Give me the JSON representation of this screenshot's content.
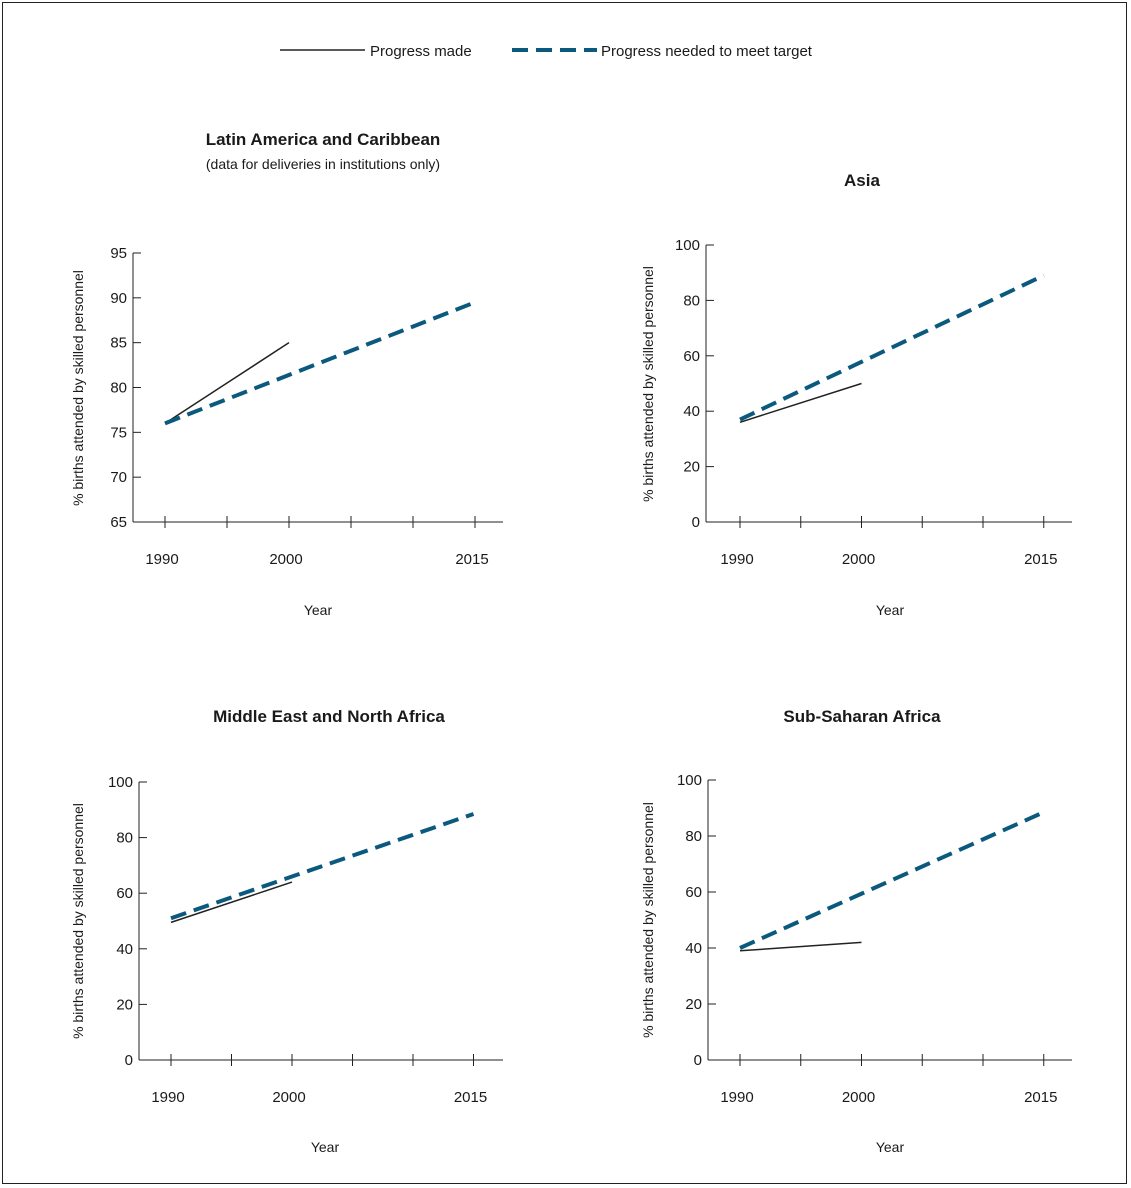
{
  "legend": {
    "made_label": "Progress made",
    "needed_label": "Progress needed to meet target"
  },
  "colors": {
    "made": "#222222",
    "needed": "#0b5a7e"
  },
  "chart_data": [
    {
      "type": "line",
      "title": "Latin America and Caribbean",
      "subtitle": "(data for deliveries in institutions only)",
      "xlabel": "Year",
      "ylabel": "% births attended by skilled personnel",
      "ylim": [
        65,
        95
      ],
      "yticks": [
        65,
        70,
        75,
        80,
        85,
        90,
        95
      ],
      "xticks": [
        "1990",
        "2000",
        "2015"
      ],
      "series": [
        {
          "name": "Progress made",
          "x": [
            1990,
            2000
          ],
          "y": [
            76,
            85
          ]
        },
        {
          "name": "Progress needed to meet target",
          "x": [
            1990,
            2015
          ],
          "y": [
            76,
            89.5
          ]
        }
      ]
    },
    {
      "type": "line",
      "title": "Asia",
      "subtitle": "",
      "xlabel": "Year",
      "ylabel": "% births attended by skilled personnel",
      "ylim": [
        0,
        100
      ],
      "yticks": [
        0,
        20,
        40,
        60,
        80,
        100
      ],
      "xticks": [
        "1990",
        "2000",
        "2015"
      ],
      "series": [
        {
          "name": "Progress made",
          "x": [
            1990,
            2000
          ],
          "y": [
            36,
            50
          ]
        },
        {
          "name": "Progress needed to meet target",
          "x": [
            1990,
            2015
          ],
          "y": [
            37,
            89
          ]
        }
      ]
    },
    {
      "type": "line",
      "title": "Middle East and North Africa",
      "subtitle": "",
      "xlabel": "Year",
      "ylabel": "% births attended by skilled personnel",
      "ylim": [
        0,
        100
      ],
      "yticks": [
        0,
        20,
        40,
        60,
        80,
        100
      ],
      "xticks": [
        "1990",
        "2000",
        "2015"
      ],
      "series": [
        {
          "name": "Progress made",
          "x": [
            1990,
            2000
          ],
          "y": [
            49.5,
            64
          ]
        },
        {
          "name": "Progress needed to meet target",
          "x": [
            1990,
            2015
          ],
          "y": [
            51,
            88.5
          ]
        }
      ]
    },
    {
      "type": "line",
      "title": "Sub-Saharan Africa",
      "subtitle": "",
      "xlabel": "Year",
      "ylabel": "% births attended by skilled personnel",
      "ylim": [
        0,
        100
      ],
      "yticks": [
        0,
        20,
        40,
        60,
        80,
        100
      ],
      "xticks": [
        "1990",
        "2000",
        "2015"
      ],
      "series": [
        {
          "name": "Progress made",
          "x": [
            1990,
            2000
          ],
          "y": [
            39,
            42
          ]
        },
        {
          "name": "Progress needed to meet target",
          "x": [
            1990,
            2015
          ],
          "y": [
            40,
            88.5
          ]
        }
      ]
    }
  ]
}
